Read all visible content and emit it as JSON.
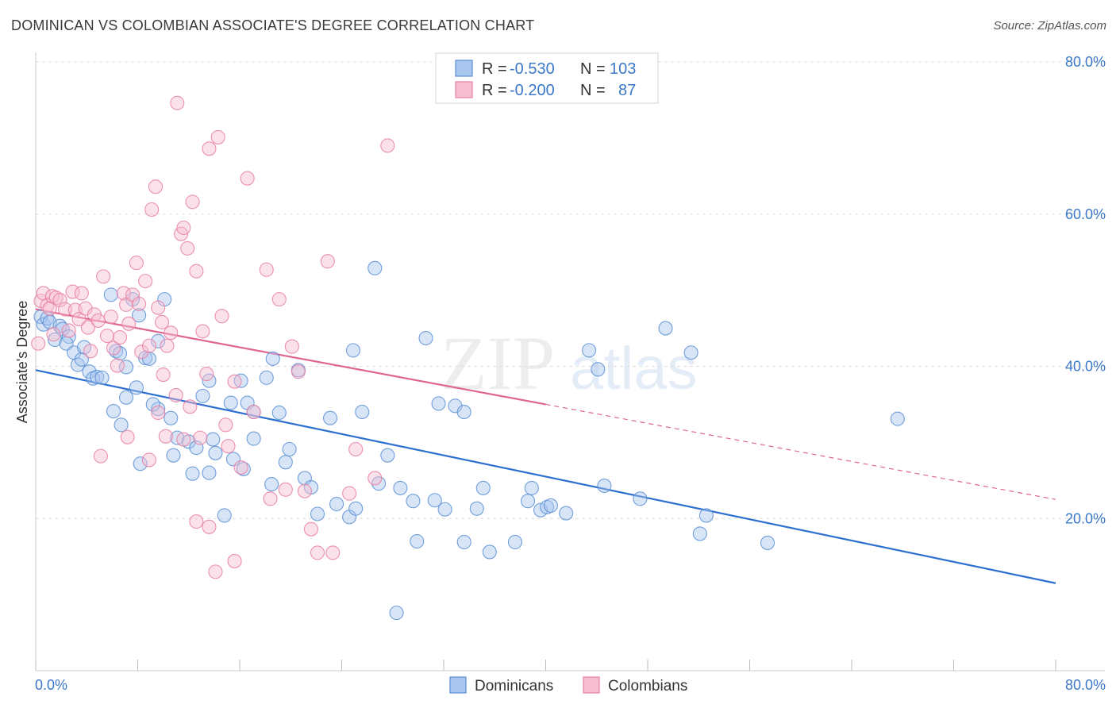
{
  "header": {
    "title": "DOMINICAN VS COLOMBIAN ASSOCIATE'S DEGREE CORRELATION CHART",
    "source": "Source: ZipAtlas.com"
  },
  "colors": {
    "blue": "#5b8fd6",
    "blue_fill": "#a9c6ee",
    "blue_line": "#2d6fd0",
    "pink": "#e87fa3",
    "pink_fill": "#f6bdd0",
    "pink_line": "#e0668f",
    "tick_text": "#3b78c9",
    "grid": "#dddddd"
  },
  "chart_data": {
    "type": "scatter",
    "title": "DOMINICAN VS COLOMBIAN ASSOCIATE'S DEGREE CORRELATION CHART",
    "ylabel": "Associate's Degree",
    "xlabel": "",
    "xlim": [
      0,
      80
    ],
    "ylim": [
      0,
      80
    ],
    "x_tick_labels": [
      "0.0%",
      "80.0%"
    ],
    "y_tick_labels": [
      "20.0%",
      "40.0%",
      "60.0%",
      "80.0%"
    ],
    "y_ticks": [
      20,
      40,
      60,
      80
    ],
    "grid": "horizontal dashed",
    "legend_placement": "top-center",
    "watermark": "ZIPatlas",
    "stats": [
      {
        "r_label": "R =",
        "r": "-0.530",
        "n_label": "N =",
        "n": "103"
      },
      {
        "r_label": "R =",
        "r": "-0.200",
        "n_label": "N =",
        "n": "87"
      }
    ],
    "series": [
      {
        "name": "Dominicans",
        "trend": {
          "x0": 0,
          "y0": 39.5,
          "x1": 80,
          "y1": 11.5
        },
        "points": [
          [
            0.4,
            46.5
          ],
          [
            0.6,
            45.5
          ],
          [
            0.9,
            46.3
          ],
          [
            1.1,
            45.8
          ],
          [
            1.5,
            43.5
          ],
          [
            1.9,
            45.3
          ],
          [
            2.1,
            44.9
          ],
          [
            2.6,
            43.9
          ],
          [
            2.4,
            43.0
          ],
          [
            3.0,
            41.8
          ],
          [
            3.3,
            40.2
          ],
          [
            3.6,
            40.9
          ],
          [
            3.8,
            42.5
          ],
          [
            4.2,
            39.3
          ],
          [
            4.5,
            38.4
          ],
          [
            4.8,
            38.6
          ],
          [
            5.2,
            38.5
          ],
          [
            5.9,
            49.4
          ],
          [
            6.3,
            42.0
          ],
          [
            6.6,
            41.7
          ],
          [
            7.1,
            39.9
          ],
          [
            7.6,
            48.8
          ],
          [
            7.9,
            37.2
          ],
          [
            8.1,
            46.7
          ],
          [
            8.6,
            41.1
          ],
          [
            8.9,
            41.0
          ],
          [
            9.6,
            43.3
          ],
          [
            10.1,
            48.8
          ],
          [
            6.1,
            34.1
          ],
          [
            7.1,
            35.9
          ],
          [
            6.7,
            32.3
          ],
          [
            9.6,
            34.4
          ],
          [
            9.2,
            35.0
          ],
          [
            10.6,
            33.2
          ],
          [
            11.1,
            30.6
          ],
          [
            12.0,
            30.1
          ],
          [
            12.6,
            29.3
          ],
          [
            13.1,
            36.1
          ],
          [
            13.6,
            38.1
          ],
          [
            13.9,
            30.4
          ],
          [
            14.1,
            28.6
          ],
          [
            15.3,
            35.2
          ],
          [
            15.5,
            27.8
          ],
          [
            16.1,
            38.1
          ],
          [
            16.6,
            35.2
          ],
          [
            17.1,
            34.0
          ],
          [
            17.1,
            30.5
          ],
          [
            18.1,
            38.5
          ],
          [
            18.6,
            41.0
          ],
          [
            19.1,
            33.9
          ],
          [
            19.6,
            27.4
          ],
          [
            19.9,
            29.1
          ],
          [
            20.6,
            39.5
          ],
          [
            21.1,
            25.3
          ],
          [
            21.6,
            24.1
          ],
          [
            22.1,
            20.6
          ],
          [
            23.1,
            33.2
          ],
          [
            23.6,
            21.9
          ],
          [
            24.6,
            20.2
          ],
          [
            25.1,
            21.3
          ],
          [
            24.9,
            42.1
          ],
          [
            25.6,
            34.0
          ],
          [
            26.6,
            52.9
          ],
          [
            26.9,
            24.6
          ],
          [
            27.6,
            28.3
          ],
          [
            28.3,
            7.6
          ],
          [
            28.6,
            24.0
          ],
          [
            29.6,
            22.3
          ],
          [
            29.9,
            17.0
          ],
          [
            30.6,
            43.7
          ],
          [
            31.3,
            22.4
          ],
          [
            32.1,
            21.2
          ],
          [
            31.6,
            35.1
          ],
          [
            32.9,
            34.8
          ],
          [
            33.6,
            34.0
          ],
          [
            33.6,
            16.9
          ],
          [
            34.6,
            21.3
          ],
          [
            35.1,
            24.0
          ],
          [
            35.6,
            15.6
          ],
          [
            37.6,
            16.9
          ],
          [
            38.6,
            22.3
          ],
          [
            38.9,
            24.0
          ],
          [
            39.6,
            21.1
          ],
          [
            40.1,
            21.5
          ],
          [
            40.4,
            21.7
          ],
          [
            41.6,
            20.7
          ],
          [
            43.4,
            42.1
          ],
          [
            44.1,
            39.6
          ],
          [
            44.6,
            24.3
          ],
          [
            47.4,
            22.6
          ],
          [
            49.4,
            45.0
          ],
          [
            51.4,
            41.8
          ],
          [
            52.1,
            18.0
          ],
          [
            52.6,
            20.4
          ],
          [
            57.4,
            16.8
          ],
          [
            67.6,
            33.1
          ],
          [
            13.6,
            26.0
          ],
          [
            8.2,
            27.2
          ],
          [
            10.8,
            28.3
          ],
          [
            12.3,
            25.9
          ],
          [
            14.8,
            20.4
          ],
          [
            16.3,
            26.5
          ],
          [
            18.5,
            24.5
          ]
        ]
      },
      {
        "name": "Colombians",
        "trend": {
          "x0": 0,
          "y0": 47.5,
          "x1": 40,
          "y1": 35.0
        },
        "trend_dashed": {
          "x0": 40,
          "y0": 35.0,
          "x1": 80,
          "y1": 22.5
        },
        "points": [
          [
            0.2,
            43.0
          ],
          [
            0.4,
            48.6
          ],
          [
            0.6,
            49.6
          ],
          [
            0.9,
            48.0
          ],
          [
            1.1,
            47.6
          ],
          [
            1.3,
            49.2
          ],
          [
            1.4,
            44.2
          ],
          [
            1.6,
            49.0
          ],
          [
            1.9,
            48.7
          ],
          [
            2.3,
            47.5
          ],
          [
            2.6,
            44.7
          ],
          [
            2.9,
            49.8
          ],
          [
            3.1,
            47.4
          ],
          [
            3.4,
            46.2
          ],
          [
            3.6,
            49.6
          ],
          [
            3.9,
            47.6
          ],
          [
            4.1,
            45.1
          ],
          [
            4.3,
            42.0
          ],
          [
            4.6,
            46.8
          ],
          [
            4.9,
            46.0
          ],
          [
            5.3,
            51.8
          ],
          [
            5.6,
            44.0
          ],
          [
            5.9,
            46.5
          ],
          [
            6.1,
            42.4
          ],
          [
            6.4,
            40.1
          ],
          [
            6.6,
            43.8
          ],
          [
            6.9,
            49.6
          ],
          [
            7.1,
            48.1
          ],
          [
            7.3,
            45.6
          ],
          [
            7.6,
            49.4
          ],
          [
            7.9,
            53.6
          ],
          [
            8.1,
            48.2
          ],
          [
            8.3,
            41.9
          ],
          [
            8.6,
            51.2
          ],
          [
            8.9,
            42.7
          ],
          [
            9.1,
            60.6
          ],
          [
            9.4,
            63.6
          ],
          [
            9.6,
            47.7
          ],
          [
            9.9,
            45.8
          ],
          [
            10.3,
            42.7
          ],
          [
            10.6,
            44.4
          ],
          [
            11.1,
            74.6
          ],
          [
            11.4,
            57.4
          ],
          [
            11.6,
            58.2
          ],
          [
            11.9,
            55.5
          ],
          [
            12.3,
            61.6
          ],
          [
            12.6,
            52.5
          ],
          [
            13.1,
            44.6
          ],
          [
            13.6,
            68.6
          ],
          [
            14.3,
            70.1
          ],
          [
            14.6,
            46.6
          ],
          [
            15.6,
            38.0
          ],
          [
            16.6,
            64.7
          ],
          [
            17.1,
            34.0
          ],
          [
            18.1,
            52.7
          ],
          [
            19.1,
            48.8
          ],
          [
            20.1,
            42.6
          ],
          [
            20.6,
            39.3
          ],
          [
            21.1,
            23.6
          ],
          [
            21.6,
            18.6
          ],
          [
            22.1,
            15.5
          ],
          [
            22.9,
            53.8
          ],
          [
            23.3,
            15.5
          ],
          [
            24.6,
            23.3
          ],
          [
            25.1,
            29.1
          ],
          [
            26.6,
            25.3
          ],
          [
            27.6,
            69.0
          ],
          [
            10.2,
            30.8
          ],
          [
            11.6,
            30.4
          ],
          [
            12.9,
            30.6
          ],
          [
            14.9,
            32.3
          ],
          [
            12.6,
            19.6
          ],
          [
            13.6,
            18.9
          ],
          [
            14.1,
            13.0
          ],
          [
            15.6,
            14.4
          ],
          [
            15.1,
            29.5
          ],
          [
            5.1,
            28.2
          ],
          [
            8.9,
            27.7
          ],
          [
            11.0,
            36.2
          ],
          [
            10.0,
            38.9
          ],
          [
            7.2,
            30.7
          ],
          [
            16.1,
            26.7
          ],
          [
            13.4,
            39.0
          ],
          [
            18.4,
            22.6
          ],
          [
            19.6,
            23.8
          ],
          [
            12.1,
            34.7
          ],
          [
            9.6,
            33.9
          ]
        ]
      }
    ]
  },
  "legend": {
    "bottom": [
      "Dominicans",
      "Colombians"
    ]
  }
}
